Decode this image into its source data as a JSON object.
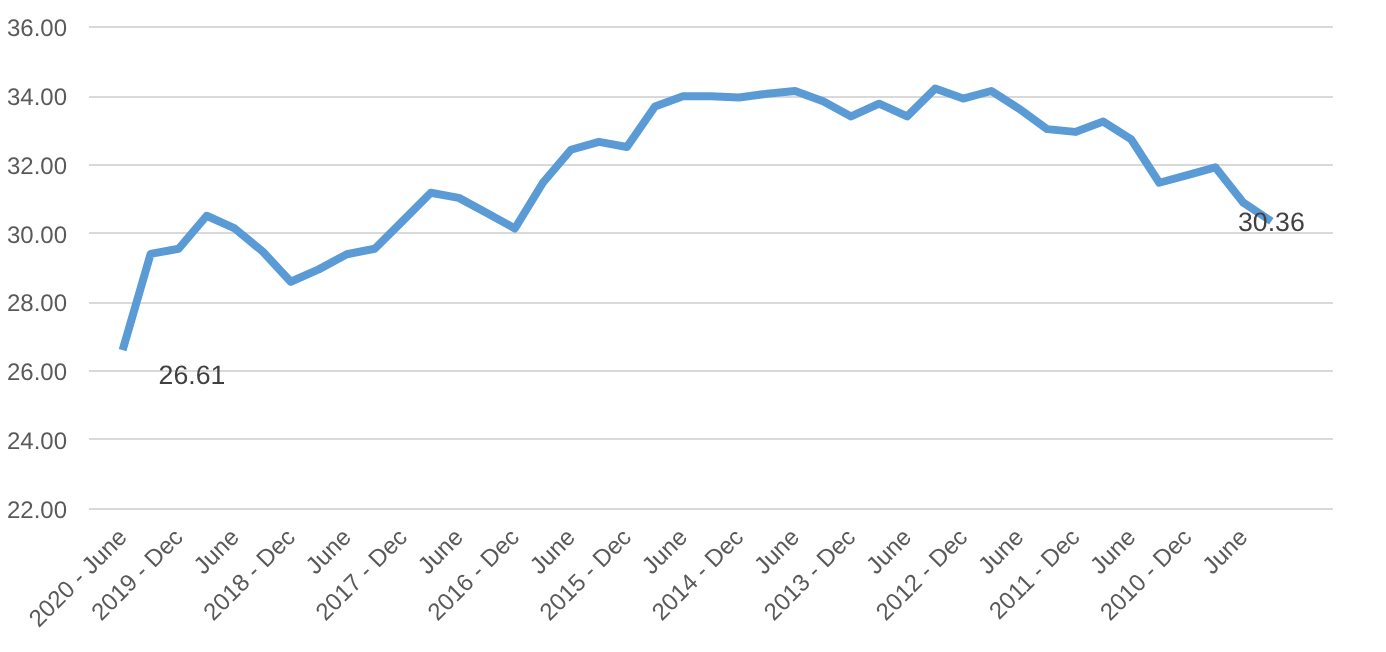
{
  "chart_data": {
    "type": "line",
    "categories": [
      "2020 - June",
      null,
      "2019 - Dec",
      null,
      "June",
      null,
      "2018 - Dec",
      null,
      "June",
      null,
      "2017 - Dec",
      null,
      "June",
      null,
      "2016 - Dec",
      null,
      "June",
      null,
      "2015 - Dec",
      null,
      "June",
      null,
      "2014 - Dec",
      null,
      "June",
      null,
      "2013 - Dec",
      null,
      "June",
      null,
      "2012 - Dec",
      null,
      "June",
      null,
      "2011 - Dec",
      null,
      "June",
      null,
      "2010 - Dec",
      null,
      "June",
      null
    ],
    "series": [
      {
        "color": "#5b9bd5",
        "values": [
          26.61,
          29.41,
          29.56,
          30.52,
          30.15,
          29.48,
          28.6,
          28.96,
          29.4,
          29.56,
          30.37,
          31.19,
          31.04,
          30.6,
          30.15,
          31.48,
          32.44,
          32.67,
          32.52,
          33.7,
          34.0,
          34.0,
          33.96,
          34.07,
          34.15,
          33.85,
          33.41,
          33.78,
          33.41,
          34.22,
          33.93,
          34.15,
          33.63,
          33.04,
          32.96,
          33.26,
          32.74,
          31.48,
          31.7,
          31.93,
          30.9,
          30.36
        ],
        "value_labels": [
          "26.61",
          null,
          null,
          null,
          null,
          null,
          null,
          null,
          null,
          null,
          null,
          null,
          null,
          null,
          null,
          null,
          null,
          null,
          null,
          null,
          null,
          null,
          null,
          null,
          null,
          null,
          null,
          null,
          null,
          null,
          null,
          null,
          null,
          null,
          null,
          null,
          null,
          null,
          null,
          null,
          null,
          "30.36"
        ]
      }
    ],
    "ylim": [
      22,
      36
    ],
    "yticks": [
      {
        "value": 22,
        "label": "22.00"
      },
      {
        "value": 24,
        "label": "24.00"
      },
      {
        "value": 26,
        "label": "26.00"
      },
      {
        "value": 28,
        "label": "28.00"
      },
      {
        "value": 30,
        "label": "30.00"
      },
      {
        "value": 32,
        "label": "32.00"
      },
      {
        "value": 34,
        "label": "34.00"
      },
      {
        "value": 36,
        "label": "36.00"
      }
    ],
    "grid": "y",
    "marker": "none",
    "line_style": "solid"
  }
}
